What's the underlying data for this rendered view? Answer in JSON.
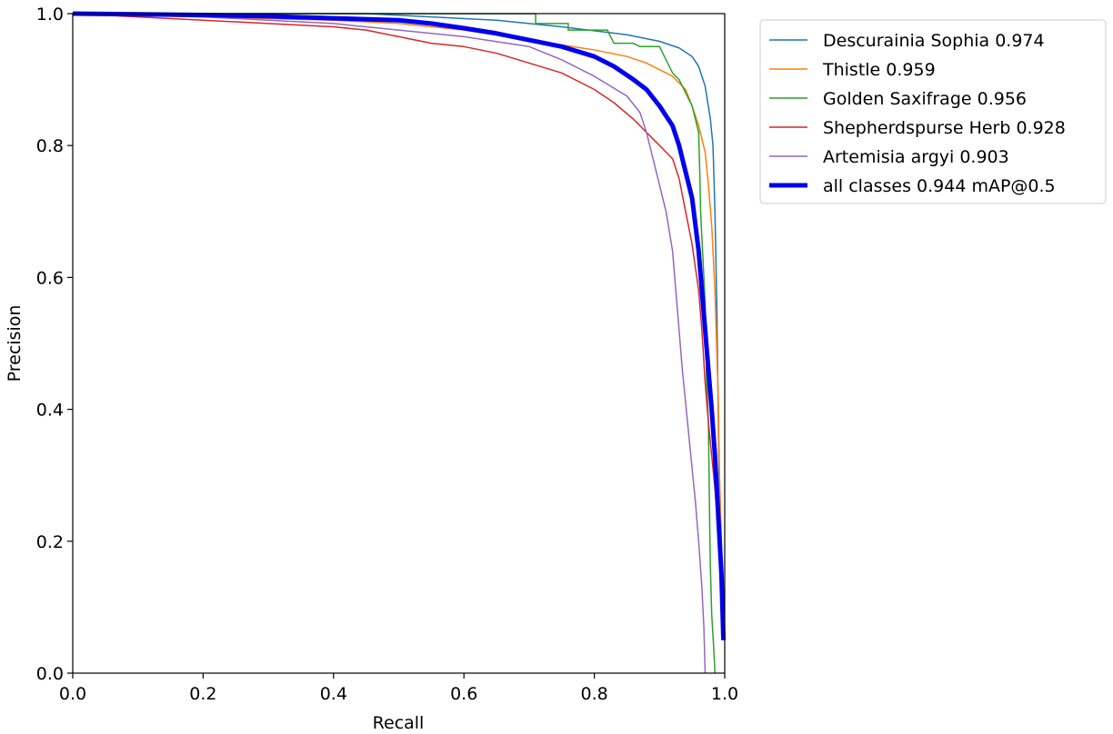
{
  "chart_data": {
    "type": "line",
    "title": "",
    "xlabel": "Recall",
    "ylabel": "Precision",
    "xlim": [
      0,
      1
    ],
    "ylim": [
      0,
      1
    ],
    "xticks": [
      "0.0",
      "0.2",
      "0.4",
      "0.6",
      "0.8",
      "1.0"
    ],
    "yticks": [
      "0.0",
      "0.2",
      "0.4",
      "0.6",
      "0.8",
      "1.0"
    ],
    "grid": false,
    "legend_position": "outside-right-top",
    "series": [
      {
        "name": "Descurainia Sophia 0.974",
        "color": "#1f77b4",
        "width": 1.5,
        "points": [
          [
            0,
            1.0
          ],
          [
            0.3,
            1.0
          ],
          [
            0.45,
            1.0
          ],
          [
            0.55,
            0.995
          ],
          [
            0.65,
            0.99
          ],
          [
            0.75,
            0.98
          ],
          [
            0.85,
            0.968
          ],
          [
            0.9,
            0.958
          ],
          [
            0.93,
            0.948
          ],
          [
            0.95,
            0.935
          ],
          [
            0.96,
            0.92
          ],
          [
            0.97,
            0.89
          ],
          [
            0.978,
            0.84
          ],
          [
            0.982,
            0.8
          ],
          [
            0.985,
            0.7
          ],
          [
            0.988,
            0.55
          ],
          [
            0.99,
            0.4
          ],
          [
            0.992,
            0.25
          ],
          [
            0.995,
            0.12
          ],
          [
            0.997,
            0.05
          ]
        ]
      },
      {
        "name": "Thistle 0.959",
        "color": "#ff7f0e",
        "width": 1.5,
        "points": [
          [
            0,
            1.0
          ],
          [
            0.2,
            0.995
          ],
          [
            0.4,
            0.99
          ],
          [
            0.5,
            0.985
          ],
          [
            0.6,
            0.975
          ],
          [
            0.7,
            0.96
          ],
          [
            0.8,
            0.945
          ],
          [
            0.85,
            0.935
          ],
          [
            0.88,
            0.925
          ],
          [
            0.9,
            0.915
          ],
          [
            0.92,
            0.905
          ],
          [
            0.94,
            0.885
          ],
          [
            0.95,
            0.86
          ],
          [
            0.96,
            0.83
          ],
          [
            0.97,
            0.79
          ],
          [
            0.975,
            0.74
          ],
          [
            0.98,
            0.68
          ],
          [
            0.985,
            0.58
          ],
          [
            0.99,
            0.42
          ],
          [
            0.992,
            0.3
          ],
          [
            0.995,
            0.2
          ],
          [
            0.997,
            0.12
          ]
        ]
      },
      {
        "name": "Golden Saxifrage 0.956",
        "color": "#2ca02c",
        "width": 1.5,
        "points": [
          [
            0,
            1.0
          ],
          [
            0.5,
            1.0
          ],
          [
            0.71,
            1.0
          ],
          [
            0.71,
            0.985
          ],
          [
            0.76,
            0.985
          ],
          [
            0.76,
            0.975
          ],
          [
            0.82,
            0.975
          ],
          [
            0.83,
            0.955
          ],
          [
            0.86,
            0.955
          ],
          [
            0.87,
            0.95
          ],
          [
            0.9,
            0.95
          ],
          [
            0.92,
            0.91
          ],
          [
            0.93,
            0.9
          ],
          [
            0.94,
            0.88
          ],
          [
            0.95,
            0.86
          ],
          [
            0.96,
            0.82
          ],
          [
            0.962,
            0.75
          ],
          [
            0.963,
            0.7
          ],
          [
            0.966,
            0.64
          ],
          [
            0.968,
            0.6
          ],
          [
            0.97,
            0.56
          ],
          [
            0.972,
            0.45
          ],
          [
            0.975,
            0.38
          ],
          [
            0.976,
            0.3
          ],
          [
            0.977,
            0.22
          ],
          [
            0.978,
            0.16
          ],
          [
            0.98,
            0.09
          ],
          [
            0.983,
            0.04
          ],
          [
            0.985,
            0.0
          ]
        ]
      },
      {
        "name": "Shepherdspurse Herb 0.928",
        "color": "#d62728",
        "width": 1.5,
        "points": [
          [
            0,
            1.0
          ],
          [
            0.3,
            0.985
          ],
          [
            0.4,
            0.98
          ],
          [
            0.45,
            0.975
          ],
          [
            0.5,
            0.965
          ],
          [
            0.55,
            0.955
          ],
          [
            0.6,
            0.95
          ],
          [
            0.65,
            0.94
          ],
          [
            0.7,
            0.925
          ],
          [
            0.75,
            0.91
          ],
          [
            0.8,
            0.885
          ],
          [
            0.83,
            0.865
          ],
          [
            0.86,
            0.84
          ],
          [
            0.88,
            0.82
          ],
          [
            0.9,
            0.8
          ],
          [
            0.92,
            0.78
          ],
          [
            0.93,
            0.75
          ],
          [
            0.94,
            0.7
          ],
          [
            0.95,
            0.65
          ],
          [
            0.96,
            0.58
          ],
          [
            0.965,
            0.52
          ],
          [
            0.97,
            0.44
          ],
          [
            0.975,
            0.38
          ],
          [
            0.98,
            0.33
          ],
          [
            0.985,
            0.28
          ],
          [
            0.99,
            0.22
          ],
          [
            0.995,
            0.13
          ],
          [
            0.998,
            0.05
          ]
        ]
      },
      {
        "name": "Artemisia argyi 0.903",
        "color": "#9467bd",
        "width": 1.5,
        "points": [
          [
            0,
            1.0
          ],
          [
            0.2,
            0.995
          ],
          [
            0.3,
            0.99
          ],
          [
            0.4,
            0.985
          ],
          [
            0.5,
            0.975
          ],
          [
            0.6,
            0.965
          ],
          [
            0.7,
            0.95
          ],
          [
            0.75,
            0.93
          ],
          [
            0.8,
            0.905
          ],
          [
            0.85,
            0.875
          ],
          [
            0.87,
            0.85
          ],
          [
            0.88,
            0.82
          ],
          [
            0.89,
            0.78
          ],
          [
            0.9,
            0.74
          ],
          [
            0.91,
            0.7
          ],
          [
            0.92,
            0.64
          ],
          [
            0.925,
            0.58
          ],
          [
            0.93,
            0.52
          ],
          [
            0.935,
            0.46
          ],
          [
            0.94,
            0.41
          ],
          [
            0.945,
            0.36
          ],
          [
            0.95,
            0.31
          ],
          [
            0.955,
            0.26
          ],
          [
            0.96,
            0.2
          ],
          [
            0.965,
            0.13
          ],
          [
            0.968,
            0.07
          ],
          [
            0.97,
            0.0
          ]
        ]
      },
      {
        "name": "all classes 0.944 mAP@0.5",
        "color": "#0000ee",
        "width": 5,
        "points": [
          [
            0,
            1.0
          ],
          [
            0.2,
            0.998
          ],
          [
            0.3,
            0.996
          ],
          [
            0.4,
            0.993
          ],
          [
            0.5,
            0.99
          ],
          [
            0.55,
            0.985
          ],
          [
            0.6,
            0.978
          ],
          [
            0.65,
            0.97
          ],
          [
            0.7,
            0.96
          ],
          [
            0.75,
            0.95
          ],
          [
            0.8,
            0.935
          ],
          [
            0.83,
            0.92
          ],
          [
            0.86,
            0.9
          ],
          [
            0.88,
            0.885
          ],
          [
            0.9,
            0.86
          ],
          [
            0.92,
            0.83
          ],
          [
            0.93,
            0.8
          ],
          [
            0.94,
            0.76
          ],
          [
            0.95,
            0.72
          ],
          [
            0.955,
            0.68
          ],
          [
            0.96,
            0.64
          ],
          [
            0.965,
            0.58
          ],
          [
            0.97,
            0.52
          ],
          [
            0.975,
            0.46
          ],
          [
            0.98,
            0.4
          ],
          [
            0.985,
            0.33
          ],
          [
            0.99,
            0.24
          ],
          [
            0.995,
            0.15
          ],
          [
            0.998,
            0.05
          ]
        ]
      }
    ]
  }
}
